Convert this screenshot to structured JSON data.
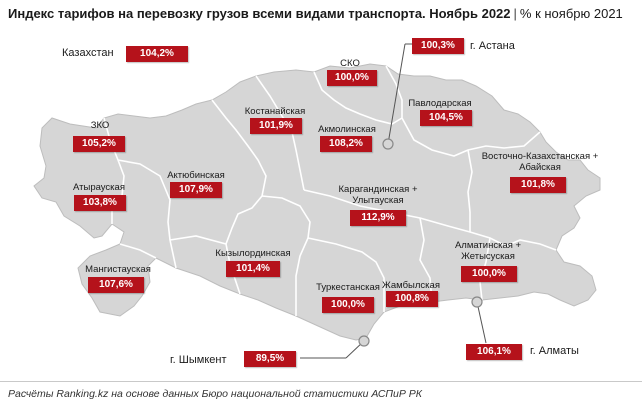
{
  "header": {
    "title": "Индекс тарифов на перевозку грузов всеми видами транспорта. Ноябрь 2022",
    "separator": "|",
    "subtitle": "% к ноябрю 2021"
  },
  "national": {
    "label": "Казахстан",
    "value": "104,2%"
  },
  "regions": {
    "sko": {
      "label": "СКО",
      "value": "100,0%"
    },
    "kostanay": {
      "label": "Костанайская",
      "value": "101,9%"
    },
    "akmola": {
      "label": "Акмолинская",
      "value": "108,2%"
    },
    "pavlodar": {
      "label": "Павлодарская",
      "value": "104,5%"
    },
    "zko": {
      "label": "ЗКО",
      "value": "105,2%"
    },
    "aktobe": {
      "label": "Актюбинская",
      "value": "107,9%"
    },
    "atyrau": {
      "label": "Атырауская",
      "value": "103,8%"
    },
    "vko": {
      "label": "Восточно-Казахстанская + Абайская",
      "value": "101,8%"
    },
    "karaganda": {
      "label": "Карагандинская + Улытауская",
      "value": "112,9%"
    },
    "kyzylorda": {
      "label": "Кызылординская",
      "value": "101,4%"
    },
    "mangistau": {
      "label": "Мангистауская",
      "value": "107,6%"
    },
    "almaty_reg": {
      "label": "Алматинская + Жетысуская",
      "value": "100,0%"
    },
    "turkestan": {
      "label": "Туркестанская",
      "value": "100,0%"
    },
    "zhambyl": {
      "label": "Жамбылская",
      "value": "100,8%"
    }
  },
  "cities": {
    "astana": {
      "label": "г. Астана",
      "value": "100,3%"
    },
    "almaty": {
      "label": "г. Алматы",
      "value": "106,1%"
    },
    "shymkent": {
      "label": "г. Шымкент",
      "value": "89,5%"
    }
  },
  "footer": {
    "source": "Расчёты Ranking.kz на основе данных Бюро национальной статистики АСПиР РК"
  },
  "colors": {
    "value_box": "#b5121b",
    "map_fill": "#d6d6d6",
    "map_border": "#ffffff",
    "city_marker": "#9a9a9a"
  }
}
